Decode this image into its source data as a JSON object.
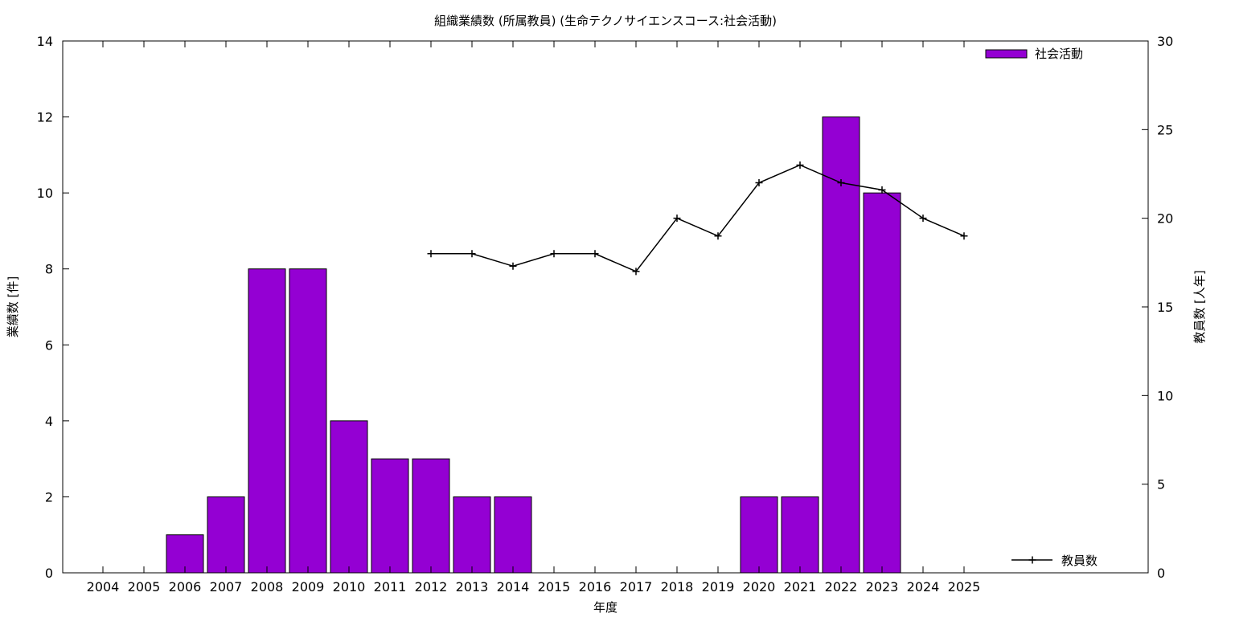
{
  "chart_data": {
    "type": "bar",
    "title": "組織業績数 (所属教員) (生命テクノサイエンスコース:社会活動)",
    "xlabel": "年度",
    "ylabel": "業績数 [件]",
    "y2label": "教員数 [人年]",
    "categories": [
      "2004",
      "2005",
      "2006",
      "2007",
      "2008",
      "2009",
      "2010",
      "2011",
      "2012",
      "2013",
      "2014",
      "2015",
      "2016",
      "2017",
      "2018",
      "2019",
      "2020",
      "2021",
      "2022",
      "2023",
      "2024",
      "2025"
    ],
    "ylim": [
      0,
      14
    ],
    "yticks": [
      0,
      2,
      4,
      6,
      8,
      10,
      12,
      14
    ],
    "y2lim": [
      0,
      30
    ],
    "y2ticks": [
      0,
      5,
      10,
      15,
      20,
      25,
      30
    ],
    "grid": false,
    "series": [
      {
        "name": "社会活動",
        "type": "bar",
        "axis": "left",
        "color": "#9400d3",
        "legend_position": "top-right",
        "values": [
          0,
          0,
          1,
          2,
          8,
          8,
          4,
          3,
          3,
          2,
          2,
          0,
          0,
          0,
          0,
          0,
          2,
          2,
          12,
          10,
          0,
          0
        ]
      },
      {
        "name": "教員数",
        "type": "line",
        "axis": "right",
        "color": "#000000",
        "marker": "plus",
        "legend_position": "bottom-right",
        "x": [
          "2012",
          "2013",
          "2014",
          "2015",
          "2016",
          "2017",
          "2018",
          "2019",
          "2020",
          "2021",
          "2022",
          "2023",
          "2024",
          "2025"
        ],
        "values": [
          18,
          18,
          17.3,
          18,
          18,
          17,
          20,
          19,
          22,
          23,
          22,
          21.6,
          20,
          19
        ]
      }
    ]
  }
}
